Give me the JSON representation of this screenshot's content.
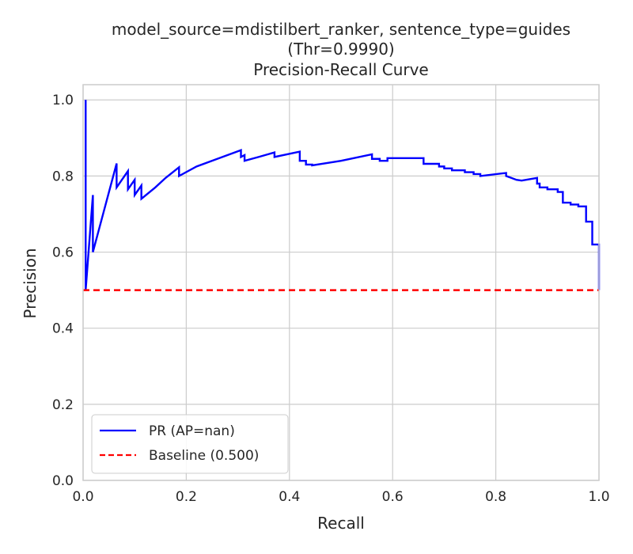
{
  "chart_data": {
    "type": "line",
    "title_lines": [
      "model_source=mdistilbert_ranker, sentence_type=guides",
      "(Thr=0.9990)",
      "Precision-Recall Curve"
    ],
    "xlabel": "Recall",
    "ylabel": "Precision",
    "xlim": [
      0.0,
      1.0
    ],
    "ylim": [
      0.0,
      1.04
    ],
    "x_ticks": [
      0.0,
      0.2,
      0.4,
      0.6,
      0.8,
      1.0
    ],
    "x_tick_labels": [
      "0.0",
      "0.2",
      "0.4",
      "0.6",
      "0.8",
      "1.0"
    ],
    "y_ticks": [
      0.0,
      0.2,
      0.4,
      0.6,
      0.8,
      1.0
    ],
    "y_tick_labels": [
      "0.0",
      "0.2",
      "0.4",
      "0.6",
      "0.8",
      "1.0"
    ],
    "grid": true,
    "legend_position": "lower-left",
    "series": [
      {
        "name": "PR (AP=nan)",
        "color": "#0000ff",
        "style": "solid",
        "x": [
          0.005,
          0.005,
          0.005,
          0.019,
          0.019,
          0.065,
          0.065,
          0.087,
          0.087,
          0.1,
          0.1,
          0.113,
          0.113,
          0.14,
          0.16,
          0.186,
          0.186,
          0.22,
          0.26,
          0.306,
          0.306,
          0.313,
          0.313,
          0.34,
          0.371,
          0.371,
          0.42,
          0.42,
          0.432,
          0.432,
          0.444,
          0.444,
          0.5,
          0.56,
          0.56,
          0.575,
          0.575,
          0.59,
          0.59,
          0.66,
          0.66,
          0.69,
          0.69,
          0.7,
          0.7,
          0.715,
          0.715,
          0.74,
          0.74,
          0.757,
          0.757,
          0.762,
          0.762,
          0.77,
          0.77,
          0.82,
          0.82,
          0.83,
          0.83,
          0.84,
          0.84,
          0.85,
          0.85,
          0.88,
          0.88,
          0.885,
          0.885,
          0.9,
          0.9,
          0.92,
          0.92,
          0.93,
          0.93,
          0.945,
          0.945,
          0.96,
          0.96,
          0.975,
          0.975,
          0.987,
          0.987,
          1.0,
          1.0
        ],
        "y": [
          1.0,
          0.5,
          0.5,
          0.75,
          0.6,
          0.833,
          0.77,
          0.813,
          0.765,
          0.79,
          0.75,
          0.775,
          0.74,
          0.77,
          0.795,
          0.823,
          0.8,
          0.825,
          0.845,
          0.868,
          0.85,
          0.855,
          0.84,
          0.85,
          0.862,
          0.85,
          0.864,
          0.84,
          0.84,
          0.83,
          0.83,
          0.828,
          0.84,
          0.857,
          0.845,
          0.845,
          0.84,
          0.84,
          0.847,
          0.847,
          0.832,
          0.832,
          0.825,
          0.825,
          0.82,
          0.82,
          0.815,
          0.815,
          0.81,
          0.81,
          0.805,
          0.805,
          0.805,
          0.805,
          0.8,
          0.808,
          0.8,
          0.795,
          0.795,
          0.79,
          0.79,
          0.788,
          0.788,
          0.795,
          0.78,
          0.78,
          0.77,
          0.77,
          0.765,
          0.765,
          0.758,
          0.758,
          0.73,
          0.73,
          0.725,
          0.725,
          0.72,
          0.72,
          0.68,
          0.68,
          0.62,
          0.62,
          0.5
        ]
      },
      {
        "name": "Baseline (0.500)",
        "color": "#ff0000",
        "style": "dashed",
        "x": [
          0.0,
          1.0
        ],
        "y": [
          0.5,
          0.5
        ]
      }
    ]
  }
}
